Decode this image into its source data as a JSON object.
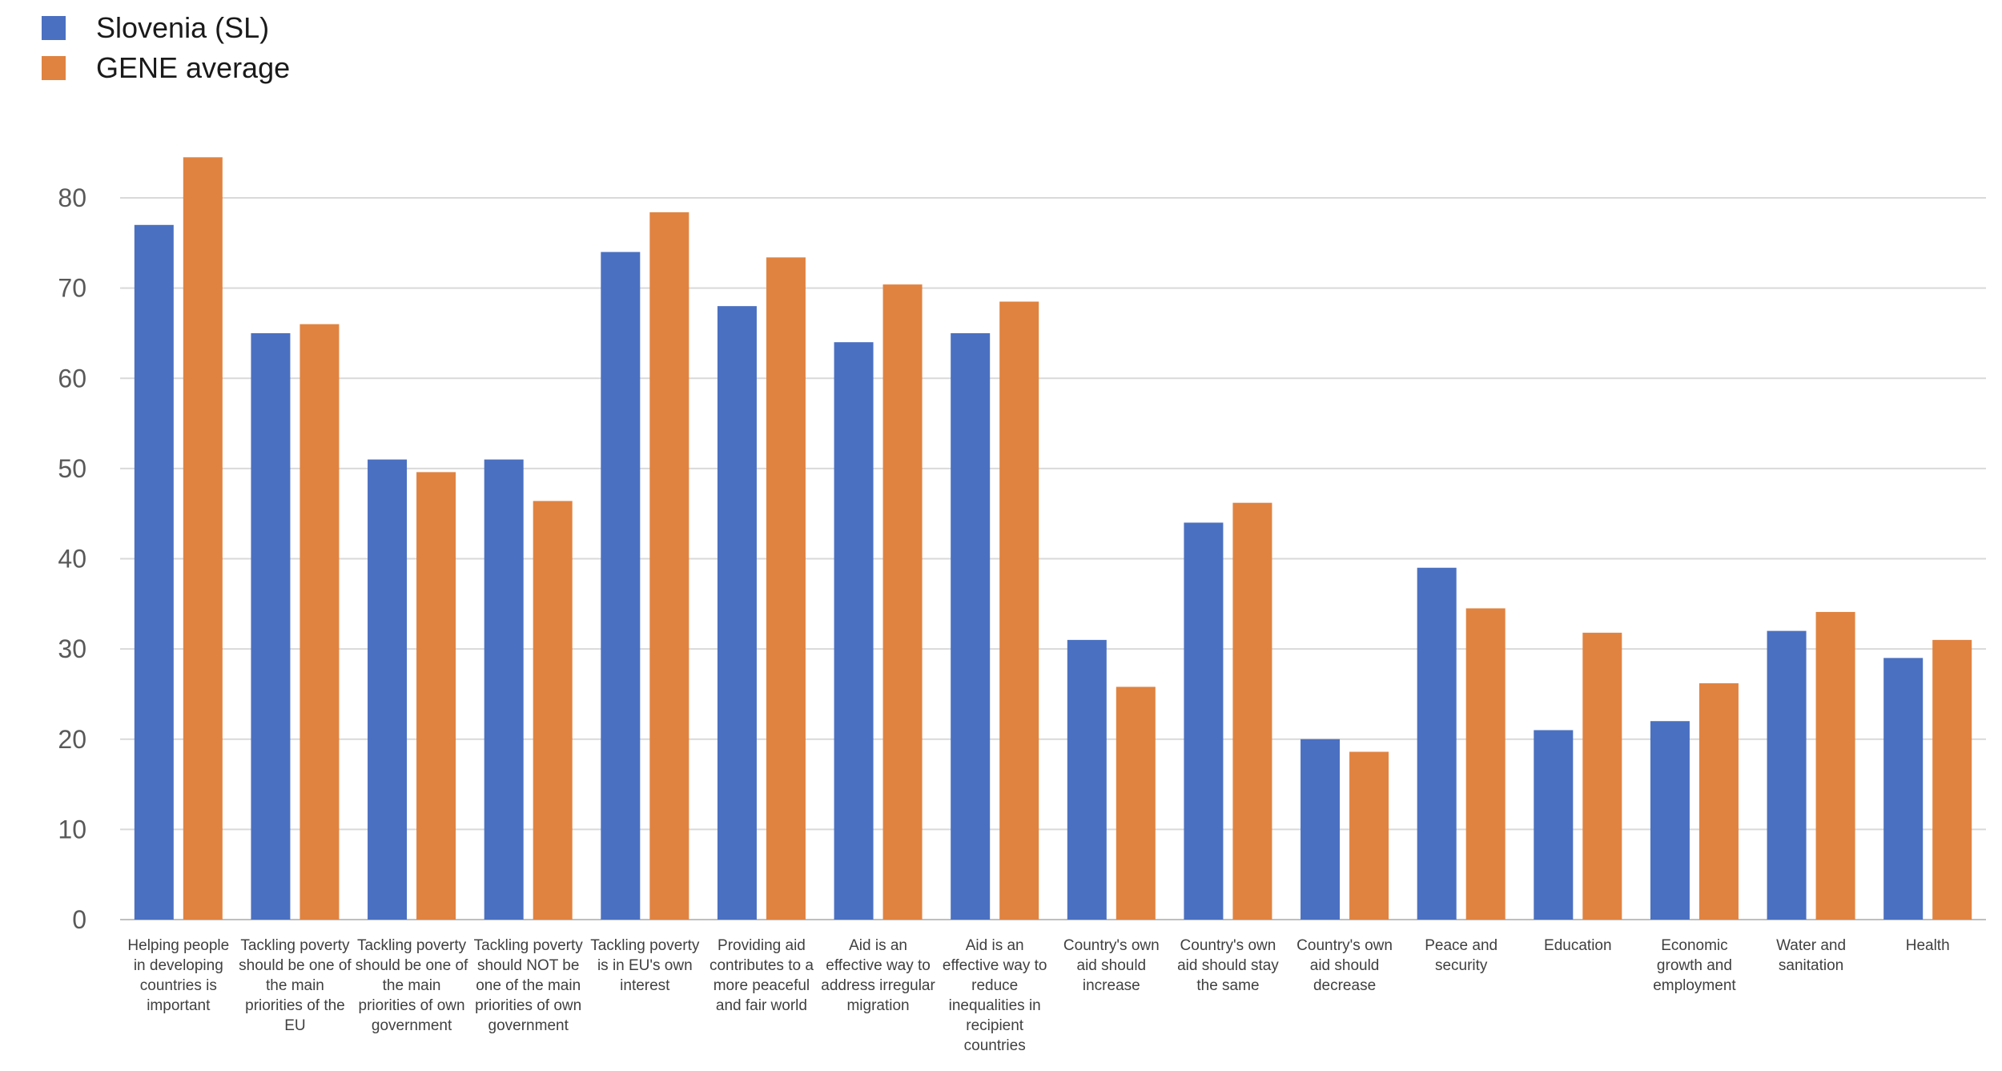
{
  "chart_data": {
    "type": "bar",
    "title": "",
    "xlabel": "",
    "ylabel": "",
    "ylim": [
      0,
      80
    ],
    "yticks": [
      0,
      10,
      20,
      30,
      40,
      50,
      60,
      70,
      80
    ],
    "grid": true,
    "legend_position": "top-left",
    "categories": [
      "Helping people in developing countries is important",
      "Tackling poverty should be one of the main priorities of the EU",
      "Tackling poverty should be one of the main priorities of own government",
      "Tackling poverty should NOT be one of the main priorities of own government",
      "Tackling poverty is in EU's own interest",
      "Providing aid contributes to a more peaceful and fair world",
      "Aid is an effective way to address irregular migration",
      "Aid is an effective way to reduce inequalities in recipient countries",
      "Country's own aid should increase",
      "Country's own aid should stay the same",
      "Country's own aid should decrease",
      "Peace and security",
      "Education",
      "Economic growth and employment",
      "Water and sanitation",
      "Health"
    ],
    "category_lines": [
      [
        "Helping people",
        "in developing",
        "countries is",
        "important"
      ],
      [
        "Tackling poverty",
        "should be one of",
        "the main",
        "priorities of the",
        "EU"
      ],
      [
        "Tackling poverty",
        "should be one of",
        "the main",
        "priorities of own",
        "government"
      ],
      [
        "Tackling poverty",
        "should NOT be",
        "one of the main",
        "priorities of own",
        "government"
      ],
      [
        "Tackling poverty",
        "is in EU's own",
        "interest"
      ],
      [
        "Providing aid",
        "contributes to a",
        "more peaceful",
        "and fair world"
      ],
      [
        "Aid is an",
        "effective way to",
        "address irregular",
        "migration"
      ],
      [
        "Aid is an",
        "effective way to",
        "reduce",
        "inequalities in",
        "recipient",
        "countries"
      ],
      [
        "Country's own",
        "aid should",
        "increase"
      ],
      [
        "Country's own",
        "aid should stay",
        "the same"
      ],
      [
        "Country's own",
        "aid should",
        "decrease"
      ],
      [
        "Peace and",
        "security"
      ],
      [
        "Education"
      ],
      [
        "Economic",
        "growth and",
        "employment"
      ],
      [
        "Water and",
        "sanitation"
      ],
      [
        "Health"
      ]
    ],
    "series": [
      {
        "name": "Slovenia (SL)",
        "color": "#4A70C1",
        "values": [
          77,
          65,
          51,
          51,
          74,
          68,
          64,
          65,
          31,
          44,
          20,
          39,
          21,
          22,
          32,
          29
        ]
      },
      {
        "name": "GENE average",
        "color": "#E08340",
        "values": [
          84.5,
          66,
          49.6,
          46.4,
          78.4,
          73.4,
          70.4,
          68.5,
          25.8,
          46.2,
          18.6,
          34.5,
          31.8,
          26.2,
          34.1,
          31
        ]
      }
    ],
    "grid_color": "#d9d9d9",
    "axis_color": "#bfbfbf"
  }
}
